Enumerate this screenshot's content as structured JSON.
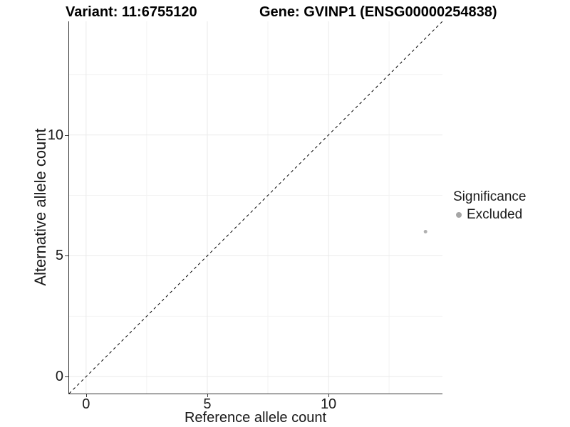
{
  "titles": {
    "left": "Variant: 11:6755120",
    "right": "Gene: GVINP1 (ENSG00000254838)"
  },
  "chart_data": {
    "type": "scatter",
    "title_left": "Variant: 11:6755120",
    "title_right": "Gene: GVINP1 (ENSG00000254838)",
    "xlabel": "Reference allele count",
    "ylabel": "Alternative allele count",
    "xlim": [
      -0.7,
      14.7
    ],
    "ylim": [
      -0.7,
      14.7
    ],
    "x_major_ticks": [
      0,
      5,
      10
    ],
    "x_tick_labels": [
      "0",
      "5",
      "10"
    ],
    "y_major_ticks": [
      0,
      5,
      10
    ],
    "y_tick_labels": [
      "0",
      "5",
      "10"
    ],
    "minor_ticks": [
      2.5,
      7.5,
      12.5
    ],
    "grid": {
      "major_color": "#e9e9e9",
      "minor_color": "#f3f3f3",
      "background": "#ffffff"
    },
    "axis_line_color": "#333333",
    "identity_line": {
      "style": "dashed",
      "from_xy": [
        -0.7,
        -0.7
      ],
      "to_xy": [
        14.7,
        14.7
      ],
      "color": "#000000",
      "dash": "4 4"
    },
    "series": [
      {
        "name": "Excluded",
        "color": "#b0b0b0",
        "point_radius": 2.5,
        "points": [
          {
            "x": 14,
            "y": 6
          }
        ]
      }
    ],
    "legend": {
      "title": "Significance",
      "position": "right",
      "items": [
        {
          "label": "Excluded",
          "color": "#a6a6a6"
        }
      ]
    }
  }
}
